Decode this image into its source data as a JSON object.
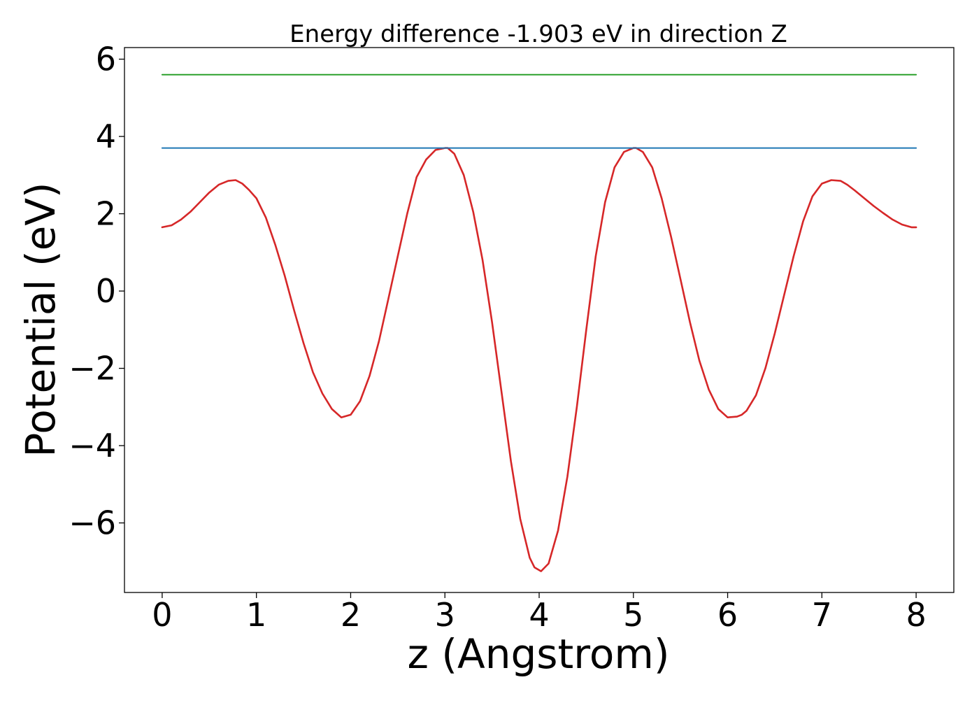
{
  "chart_data": {
    "type": "line",
    "title": "Energy difference -1.903 eV in direction Z",
    "xlabel": "z (Angstrom)",
    "ylabel": "Potential (eV)",
    "xlim": [
      -0.4,
      8.4
    ],
    "ylim": [
      -7.8,
      6.3
    ],
    "xticks": [
      0,
      1,
      2,
      3,
      4,
      5,
      6,
      7,
      8
    ],
    "xtick_labels": [
      "0",
      "1",
      "2",
      "3",
      "4",
      "5",
      "6",
      "7",
      "8"
    ],
    "yticks": [
      -6,
      -4,
      -2,
      0,
      2,
      4,
      6
    ],
    "ytick_labels": [
      "−6",
      "−4",
      "−2",
      "0",
      "2",
      "4",
      "6"
    ],
    "grid": false,
    "series": [
      {
        "color": "#d62728",
        "x": [
          0,
          0.1,
          0.2,
          0.3,
          0.4,
          0.5,
          0.6,
          0.7,
          0.78,
          0.85,
          0.92,
          1.0,
          1.1,
          1.2,
          1.3,
          1.4,
          1.5,
          1.6,
          1.7,
          1.8,
          1.9,
          2.0,
          2.1,
          2.2,
          2.3,
          2.4,
          2.5,
          2.6,
          2.7,
          2.8,
          2.9,
          3.0,
          3.03,
          3.1,
          3.2,
          3.3,
          3.4,
          3.5,
          3.6,
          3.7,
          3.8,
          3.9,
          3.95,
          4.02,
          4.1,
          4.2,
          4.3,
          4.4,
          4.5,
          4.6,
          4.7,
          4.8,
          4.9,
          5.0,
          5.03,
          5.1,
          5.2,
          5.3,
          5.4,
          5.5,
          5.6,
          5.7,
          5.8,
          5.9,
          6.0,
          6.1,
          6.15,
          6.2,
          6.3,
          6.4,
          6.5,
          6.6,
          6.7,
          6.8,
          6.9,
          7.0,
          7.1,
          7.2,
          7.27,
          7.35,
          7.45,
          7.55,
          7.65,
          7.75,
          7.85,
          7.95,
          8.0
        ],
        "y": [
          1.65,
          1.7,
          1.85,
          2.05,
          2.3,
          2.55,
          2.75,
          2.85,
          2.87,
          2.78,
          2.62,
          2.4,
          1.9,
          1.2,
          0.4,
          -0.5,
          -1.35,
          -2.1,
          -2.65,
          -3.05,
          -3.27,
          -3.2,
          -2.85,
          -2.2,
          -1.3,
          -0.2,
          0.9,
          2.0,
          2.95,
          3.4,
          3.65,
          3.7,
          3.7,
          3.55,
          3.0,
          2.05,
          0.8,
          -0.8,
          -2.6,
          -4.4,
          -5.9,
          -6.9,
          -7.15,
          -7.25,
          -7.05,
          -6.2,
          -4.8,
          -3.0,
          -1.0,
          0.9,
          2.3,
          3.2,
          3.6,
          3.7,
          3.7,
          3.6,
          3.2,
          2.4,
          1.4,
          0.3,
          -0.8,
          -1.8,
          -2.55,
          -3.05,
          -3.27,
          -3.25,
          -3.2,
          -3.1,
          -2.7,
          -2.0,
          -1.1,
          -0.1,
          0.9,
          1.8,
          2.45,
          2.78,
          2.87,
          2.85,
          2.75,
          2.6,
          2.4,
          2.2,
          2.02,
          1.85,
          1.72,
          1.65,
          1.65
        ]
      },
      {
        "color": "#1f77b4",
        "x": [
          0,
          8
        ],
        "y": [
          3.7,
          3.7
        ]
      },
      {
        "color": "#2ca02c",
        "x": [
          0,
          8
        ],
        "y": [
          5.6,
          5.6
        ]
      }
    ]
  }
}
